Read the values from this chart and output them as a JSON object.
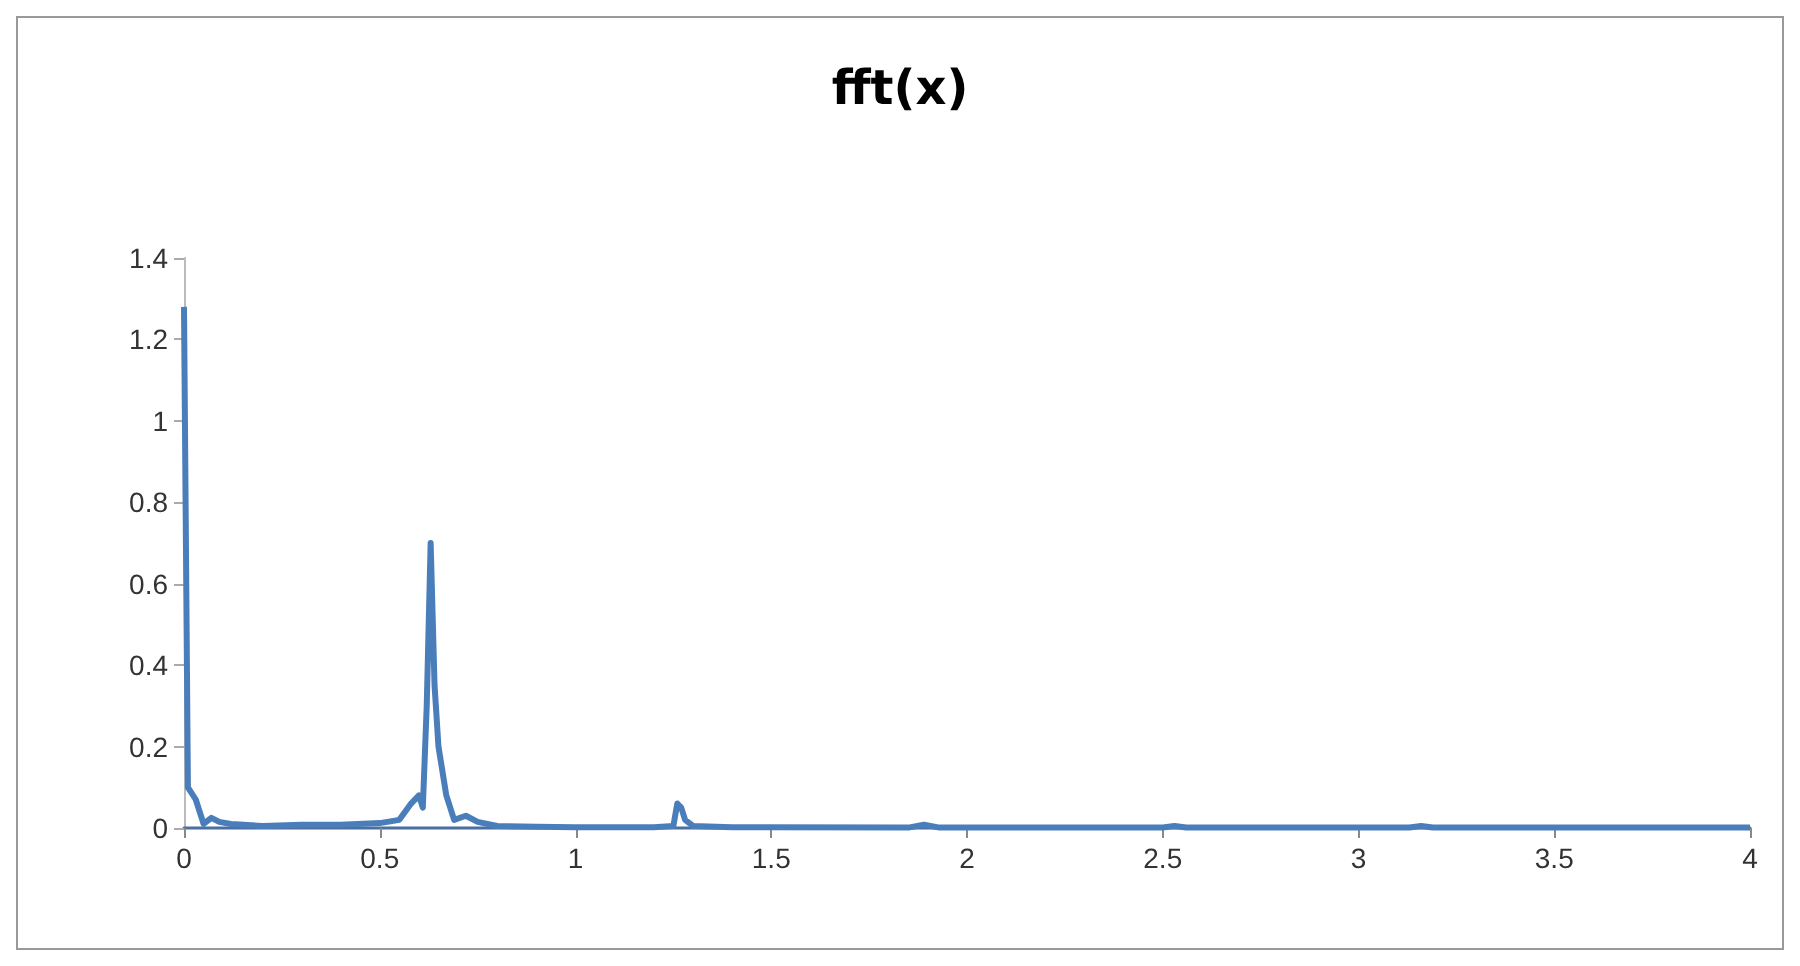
{
  "chart_data": {
    "type": "line",
    "title": "fft(x)",
    "x": [
      0,
      0.01,
      0.03,
      0.05,
      0.07,
      0.09,
      0.12,
      0.2,
      0.3,
      0.4,
      0.5,
      0.55,
      0.58,
      0.6,
      0.61,
      0.62,
      0.63,
      0.64,
      0.65,
      0.67,
      0.69,
      0.72,
      0.75,
      0.8,
      0.9,
      1.0,
      1.2,
      1.25,
      1.26,
      1.27,
      1.28,
      1.3,
      1.4,
      1.85,
      1.89,
      1.93,
      2.5,
      2.53,
      2.56,
      3.13,
      3.16,
      3.19,
      4
    ],
    "series": [
      {
        "color": "#4a7ebb",
        "values": [
          1.28,
          0.1,
          0.07,
          0.01,
          0.025,
          0.015,
          0.01,
          0.005,
          0.008,
          0.008,
          0.012,
          0.02,
          0.06,
          0.08,
          0.05,
          0.3,
          0.7,
          0.35,
          0.2,
          0.08,
          0.02,
          0.03,
          0.015,
          0.005,
          0.003,
          0.002,
          0.002,
          0.005,
          0.06,
          0.05,
          0.02,
          0.005,
          0.002,
          0.001,
          0.008,
          0.001,
          0.001,
          0.005,
          0.001,
          0.001,
          0.005,
          0.001,
          0.001
        ]
      }
    ],
    "xlim": [
      0,
      4
    ],
    "xticks": [
      0,
      0.5,
      1,
      1.5,
      2,
      2.5,
      3,
      3.5,
      4
    ],
    "ylim": [
      0,
      1.4
    ],
    "yticks": [
      0,
      0.2,
      0.4,
      0.6,
      0.8,
      1,
      1.2,
      1.4
    ],
    "grid": false,
    "marker": "none",
    "line_style": "solid"
  }
}
